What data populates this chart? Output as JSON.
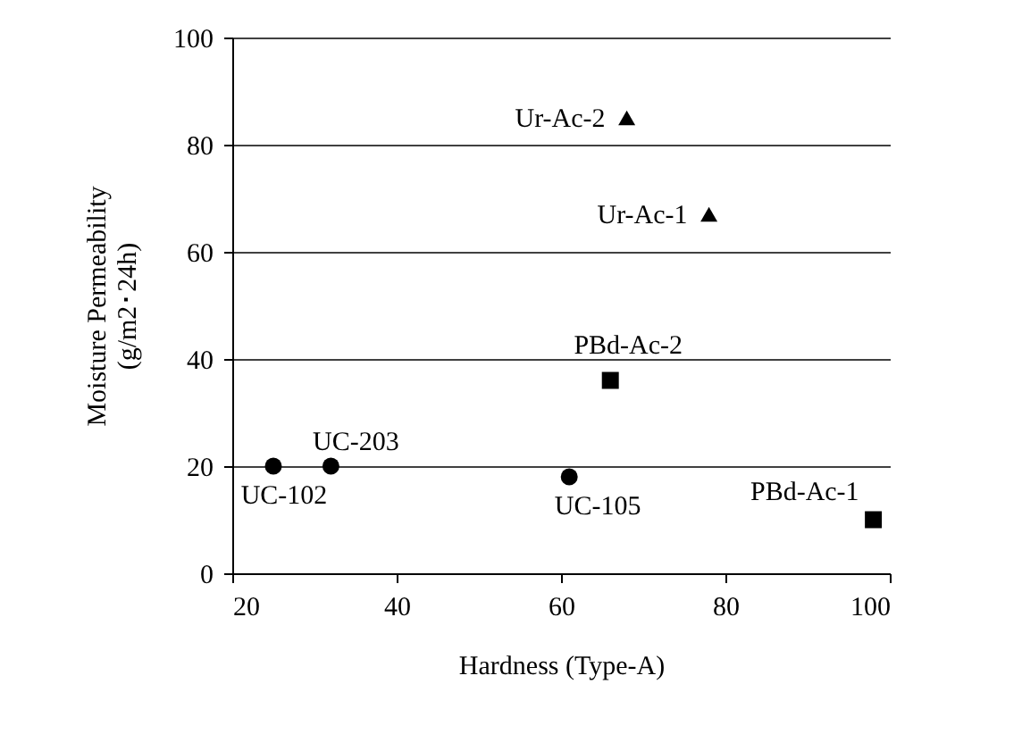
{
  "chart_data": {
    "type": "scatter",
    "xlabel": "Hardness (Type-A)",
    "ylabel": "Moisture Permeability\n(g/m2･24h)",
    "xlim": [
      20,
      100
    ],
    "xticks": [
      20,
      40,
      60,
      80,
      100
    ],
    "ylim": [
      0,
      100
    ],
    "yticks": [
      0,
      20,
      40,
      60,
      80,
      100
    ],
    "grid": "y",
    "series": [
      {
        "color": "#000000",
        "marker": "circle",
        "x": [
          25,
          32,
          61
        ],
        "values": [
          20,
          20,
          18
        ]
      },
      {
        "color": "#000000",
        "marker": "square",
        "x": [
          66,
          98
        ],
        "values": [
          36,
          10
        ]
      },
      {
        "color": "#000000",
        "marker": "triangle",
        "x": [
          78,
          68
        ],
        "values": [
          67,
          85
        ]
      }
    ],
    "annotations": [
      {
        "text": "UC-102",
        "x": 25,
        "y": 20
      },
      {
        "text": "UC-203",
        "x": 32,
        "y": 20
      },
      {
        "text": "UC-105",
        "x": 61,
        "y": 18
      },
      {
        "text": "PBd-Ac-2",
        "x": 66,
        "y": 36
      },
      {
        "text": "PBd-Ac-1",
        "x": 98,
        "y": 10
      },
      {
        "text": "Ur-Ac-1",
        "x": 78,
        "y": 67
      },
      {
        "text": "Ur-Ac-2",
        "x": 68,
        "y": 85
      }
    ]
  }
}
